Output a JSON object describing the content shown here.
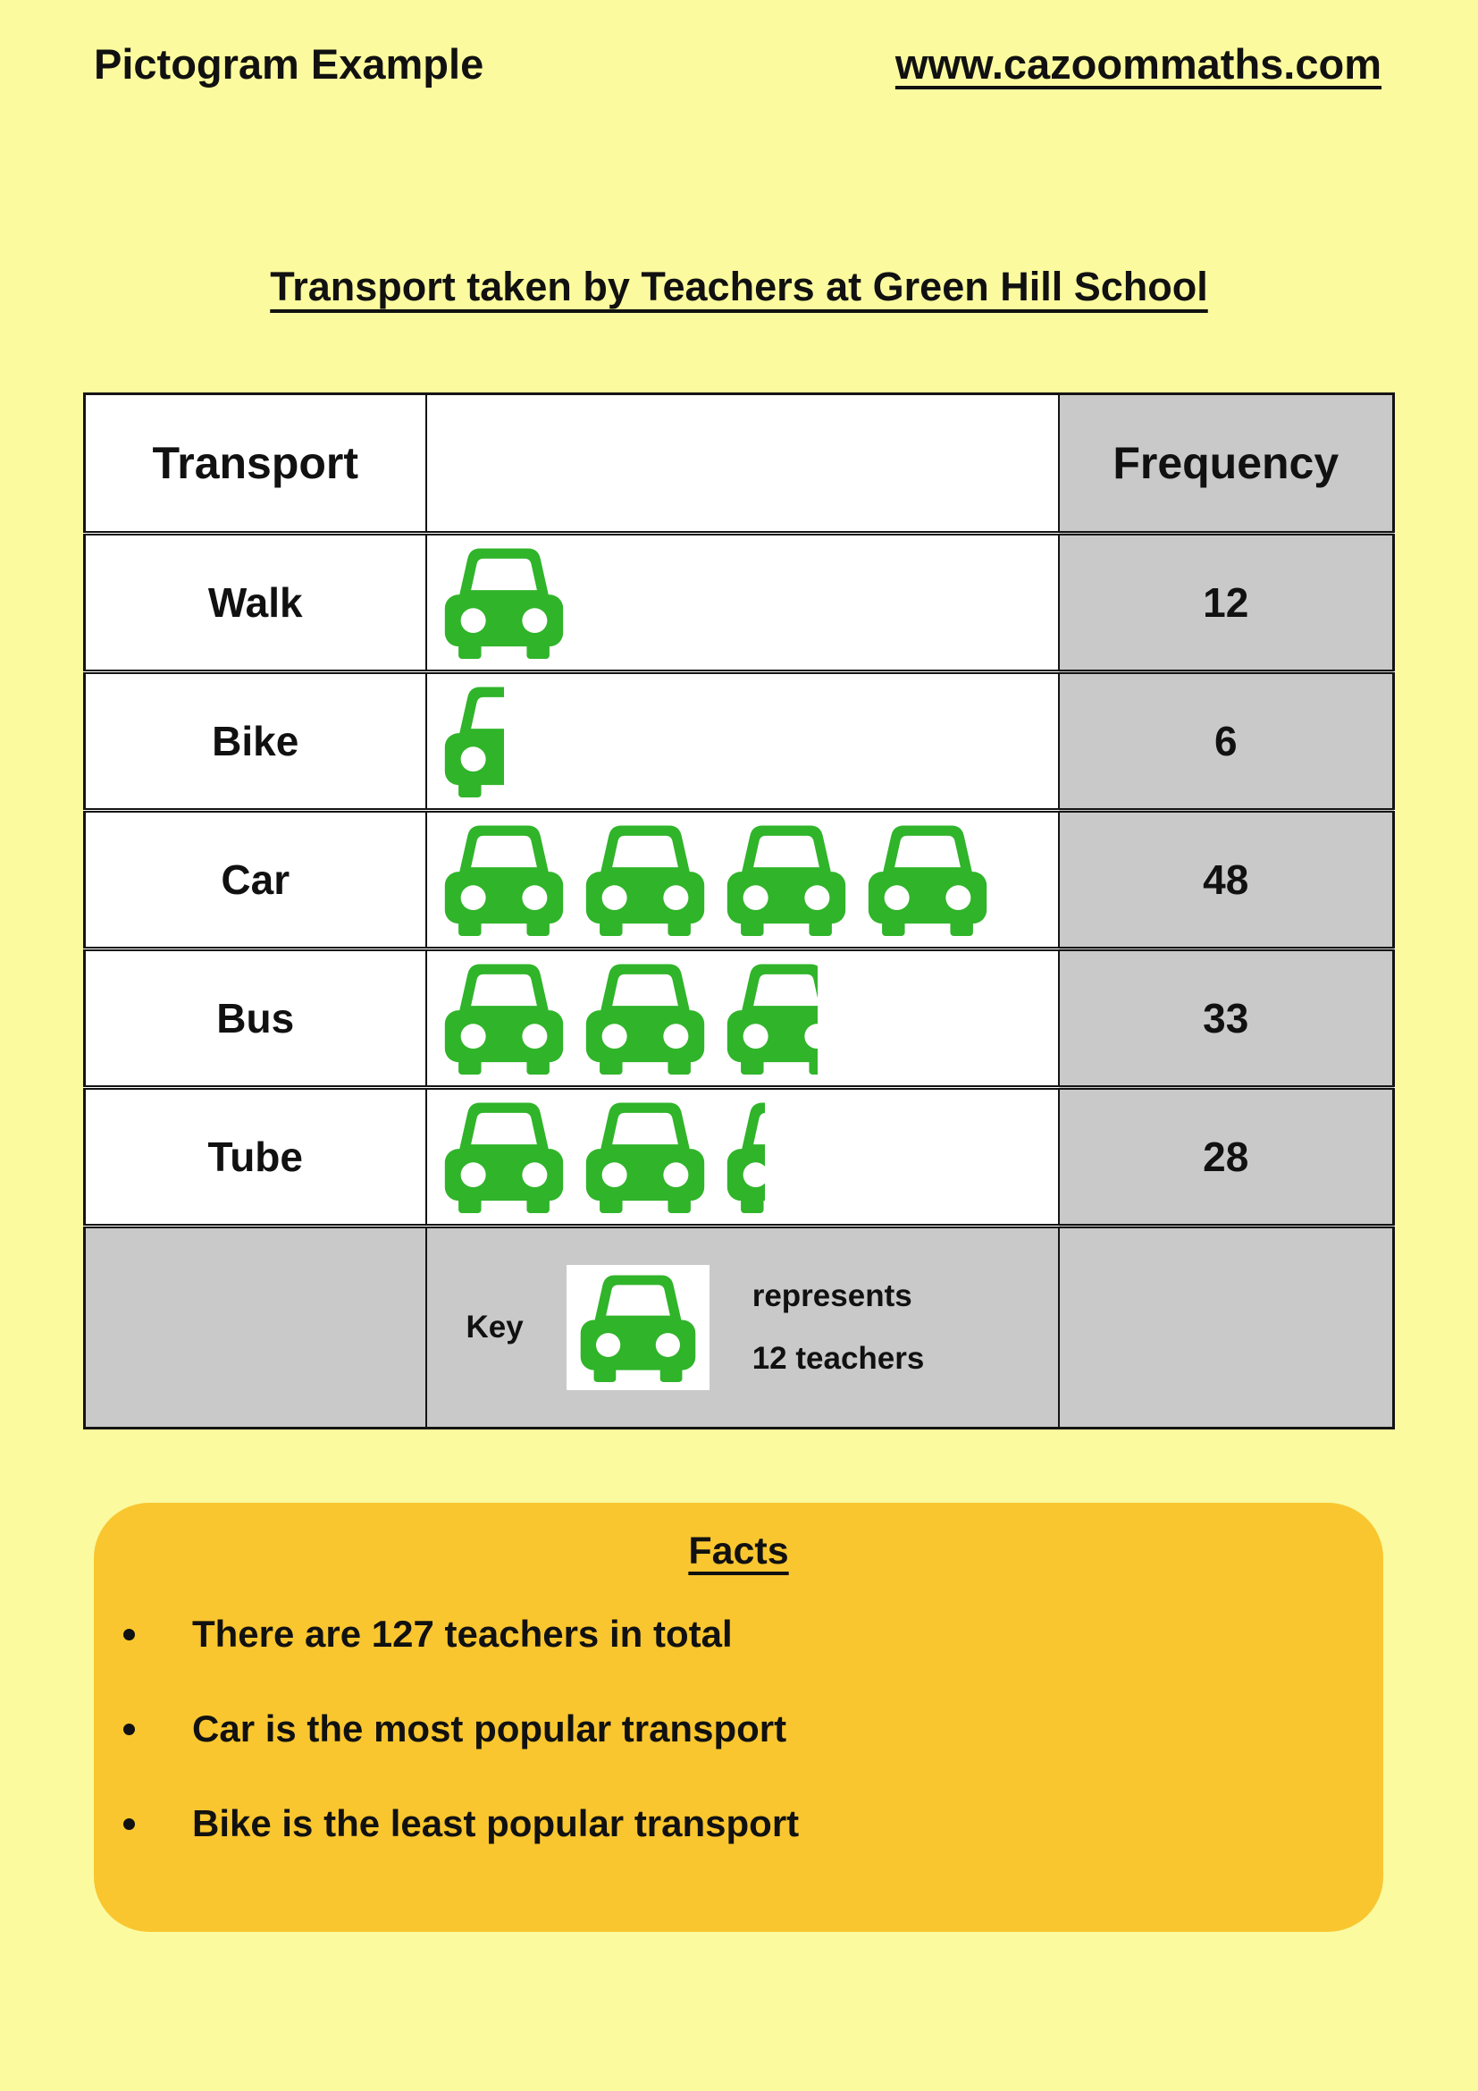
{
  "page": {
    "heading": "Pictogram Example",
    "website": "www.cazoommaths.com"
  },
  "colors": {
    "background": "#FBFA9E",
    "cell_gray": "#C9C9C9",
    "icon_green": "#30B42A",
    "facts_orange": "#F9C62F",
    "text": "#111111"
  },
  "chart_data": {
    "type": "pictogram",
    "title": "Transport taken by Teachers at Green Hill School",
    "columns": [
      "Transport",
      "",
      "Frequency"
    ],
    "categories": [
      "Walk",
      "Bike",
      "Car",
      "Bus",
      "Tube"
    ],
    "values": [
      12,
      6,
      48,
      33,
      28
    ],
    "icon": "car-icon",
    "icon_value": 12,
    "icon_units": [
      {
        "full": 1,
        "fraction": 0
      },
      {
        "full": 0,
        "fraction": 0.5
      },
      {
        "full": 4,
        "fraction": 0
      },
      {
        "full": 2,
        "fraction": 0.75
      },
      {
        "full": 2,
        "fraction": 0.33
      }
    ],
    "key": {
      "label": "Key",
      "represents": "represents",
      "amount": "12 teachers"
    }
  },
  "facts": {
    "title": "Facts",
    "bullets": [
      "There are 127 teachers in total",
      "Car is the most popular transport",
      "Bike is the least popular transport"
    ]
  }
}
